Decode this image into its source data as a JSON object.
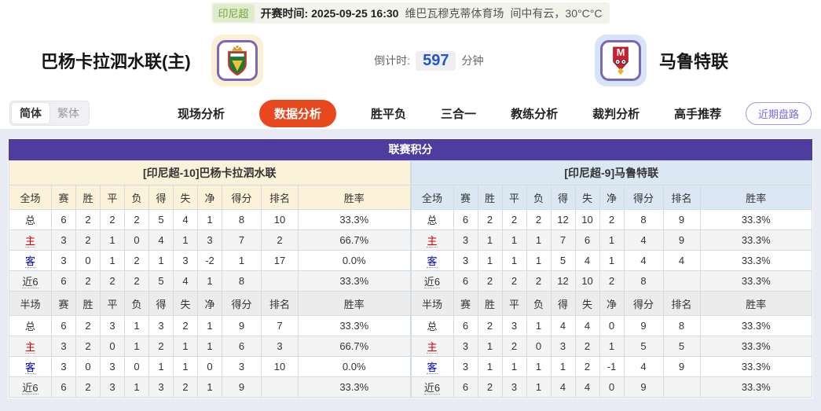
{
  "top_bar": {
    "league_badge": "印尼超",
    "kickoff_label": "开赛时间:",
    "kickoff_time": "2025-09-25 16:30",
    "venue": "维巴瓦穆克蒂体育场",
    "weather": "间中有云，30°C°C"
  },
  "match_header": {
    "home_team": "巴杨卡拉泗水联(主)",
    "away_team": "马鲁特联",
    "countdown_label": "倒计时:",
    "countdown_value": "597",
    "countdown_unit": "分钟"
  },
  "nav": {
    "lang_simplified": "简体",
    "lang_traditional": "繁体",
    "tabs": [
      "现场分析",
      "数据分析",
      "胜平负",
      "三合一",
      "教练分析",
      "裁判分析",
      "高手推荐"
    ],
    "active_tab": "数据分析",
    "recent_button": "近期盘路"
  },
  "league_table": {
    "title": "联赛积分",
    "columns_full": [
      "全场",
      "赛",
      "胜",
      "平",
      "负",
      "得",
      "失",
      "净",
      "得分",
      "排名",
      "胜率"
    ],
    "columns_half": [
      "半场",
      "赛",
      "胜",
      "平",
      "负",
      "得",
      "失",
      "净",
      "得分",
      "排名",
      "胜率"
    ],
    "left": {
      "team_title": "[印尼超-10]巴杨卡拉泗水联",
      "full_rows": [
        {
          "label": "总",
          "values": [
            "6",
            "2",
            "2",
            "2",
            "5",
            "4",
            "1",
            "8",
            "10",
            "33.3%"
          ]
        },
        {
          "label": "主",
          "values": [
            "3",
            "2",
            "1",
            "0",
            "4",
            "1",
            "3",
            "7",
            "2",
            "66.7%"
          ]
        },
        {
          "label": "客",
          "values": [
            "3",
            "0",
            "1",
            "2",
            "1",
            "3",
            "-2",
            "1",
            "17",
            "0.0%"
          ]
        },
        {
          "label": "近6",
          "values": [
            "6",
            "2",
            "2",
            "2",
            "5",
            "4",
            "1",
            "8",
            "",
            "33.3%"
          ]
        }
      ],
      "half_rows": [
        {
          "label": "总",
          "values": [
            "6",
            "2",
            "3",
            "1",
            "3",
            "2",
            "1",
            "9",
            "7",
            "33.3%"
          ]
        },
        {
          "label": "主",
          "values": [
            "3",
            "2",
            "0",
            "1",
            "2",
            "1",
            "1",
            "6",
            "3",
            "66.7%"
          ]
        },
        {
          "label": "客",
          "values": [
            "3",
            "0",
            "3",
            "0",
            "1",
            "1",
            "0",
            "3",
            "10",
            "0.0%"
          ]
        },
        {
          "label": "近6",
          "values": [
            "6",
            "2",
            "3",
            "1",
            "3",
            "2",
            "1",
            "9",
            "",
            "33.3%"
          ]
        }
      ]
    },
    "right": {
      "team_title": "[印尼超-9]马鲁特联",
      "full_rows": [
        {
          "label": "总",
          "values": [
            "6",
            "2",
            "2",
            "2",
            "12",
            "10",
            "2",
            "8",
            "9",
            "33.3%"
          ]
        },
        {
          "label": "主",
          "values": [
            "3",
            "1",
            "1",
            "1",
            "7",
            "6",
            "1",
            "4",
            "9",
            "33.3%"
          ]
        },
        {
          "label": "客",
          "values": [
            "3",
            "1",
            "1",
            "1",
            "5",
            "4",
            "1",
            "4",
            "4",
            "33.3%"
          ]
        },
        {
          "label": "近6",
          "values": [
            "6",
            "2",
            "2",
            "2",
            "12",
            "10",
            "2",
            "8",
            "",
            "33.3%"
          ]
        }
      ],
      "half_rows": [
        {
          "label": "总",
          "values": [
            "6",
            "2",
            "3",
            "1",
            "4",
            "4",
            "0",
            "9",
            "8",
            "33.3%"
          ]
        },
        {
          "label": "主",
          "values": [
            "3",
            "1",
            "2",
            "0",
            "3",
            "2",
            "1",
            "5",
            "5",
            "33.3%"
          ]
        },
        {
          "label": "客",
          "values": [
            "3",
            "1",
            "1",
            "1",
            "1",
            "2",
            "-1",
            "4",
            "9",
            "33.3%"
          ]
        },
        {
          "label": "近6",
          "values": [
            "6",
            "2",
            "3",
            "1",
            "4",
            "4",
            "0",
            "9",
            "",
            "33.3%"
          ]
        }
      ]
    }
  },
  "colors": {
    "accent_purple": "#4e3d9e",
    "active_tab_red": "#e8481d",
    "home_panel_cream": "#fcf2d9",
    "away_panel_blue": "#dbe7f3",
    "countdown_blue": "#2356c7",
    "league_green": "#72a23a",
    "home_label_red": "#cc0000",
    "away_label_blue": "#0000cc"
  }
}
